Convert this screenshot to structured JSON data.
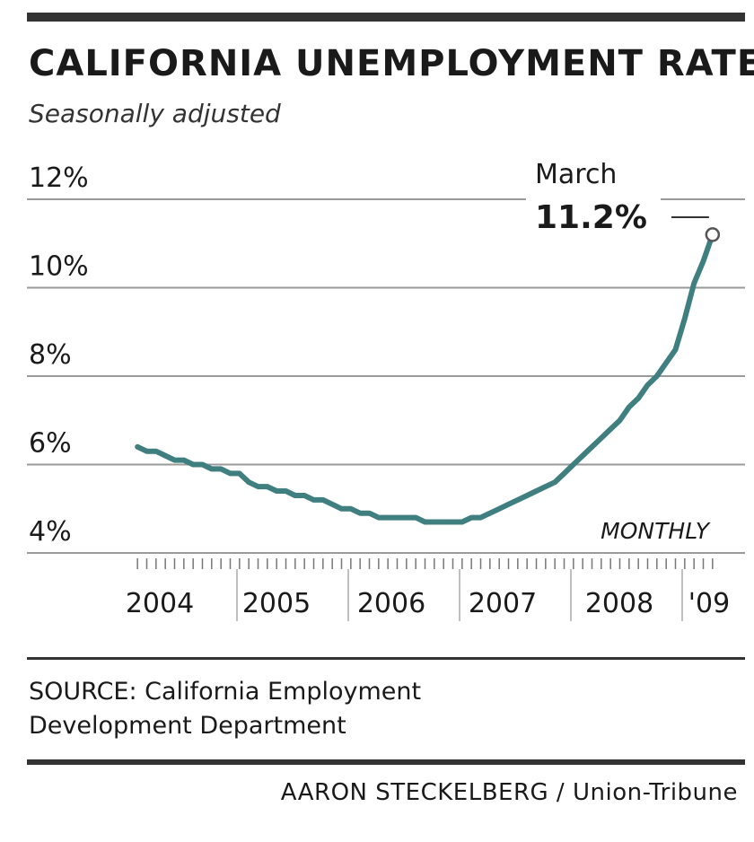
{
  "header": {
    "title": "CALIFORNIA UNEMPLOYMENT RATE",
    "subtitle": "Seasonally adjusted"
  },
  "chart_data": {
    "type": "line",
    "title": "CALIFORNIA UNEMPLOYMENT RATE",
    "subtitle": "Seasonally adjusted",
    "frequency_label": "MONTHLY",
    "ylim": [
      4,
      12
    ],
    "y_ticks": [
      12,
      10,
      8,
      6,
      4
    ],
    "y_tick_labels": [
      "12%",
      "10%",
      "8%",
      "6%",
      "4%"
    ],
    "x_tick_labels": [
      "2004",
      "2005",
      "2006",
      "2007",
      "2008",
      "'09"
    ],
    "grid": true,
    "line_color": "#3f7f80",
    "series": [
      {
        "x": [
          "Jan 2004",
          "Feb 2004",
          "Mar 2004",
          "Apr 2004",
          "May 2004",
          "Jun 2004",
          "Jul 2004",
          "Aug 2004",
          "Sep 2004",
          "Oct 2004",
          "Nov 2004",
          "Dec 2004",
          "Jan 2005",
          "Feb 2005",
          "Mar 2005",
          "Apr 2005",
          "May 2005",
          "Jun 2005",
          "Jul 2005",
          "Aug 2005",
          "Sep 2005",
          "Oct 2005",
          "Nov 2005",
          "Dec 2005",
          "Jan 2006",
          "Feb 2006",
          "Mar 2006",
          "Apr 2006",
          "May 2006",
          "Jun 2006",
          "Jul 2006",
          "Aug 2006",
          "Sep 2006",
          "Oct 2006",
          "Nov 2006",
          "Dec 2006",
          "Jan 2007",
          "Feb 2007",
          "Mar 2007",
          "Apr 2007",
          "May 2007",
          "Jun 2007",
          "Jul 2007",
          "Aug 2007",
          "Sep 2007",
          "Oct 2007",
          "Nov 2007",
          "Dec 2007",
          "Jan 2008",
          "Feb 2008",
          "Mar 2008",
          "Apr 2008",
          "May 2008",
          "Jun 2008",
          "Jul 2008",
          "Aug 2008",
          "Sep 2008",
          "Oct 2008",
          "Nov 2008",
          "Dec 2008",
          "Jan 2009",
          "Feb 2009",
          "Mar 2009"
        ],
        "values": [
          6.4,
          6.3,
          6.3,
          6.2,
          6.1,
          6.1,
          6.0,
          6.0,
          5.9,
          5.9,
          5.8,
          5.8,
          5.6,
          5.5,
          5.5,
          5.4,
          5.4,
          5.3,
          5.3,
          5.2,
          5.2,
          5.1,
          5.0,
          5.0,
          4.9,
          4.9,
          4.8,
          4.8,
          4.8,
          4.8,
          4.8,
          4.7,
          4.7,
          4.7,
          4.7,
          4.7,
          4.8,
          4.8,
          4.9,
          5.0,
          5.1,
          5.2,
          5.3,
          5.4,
          5.5,
          5.6,
          5.8,
          6.0,
          6.2,
          6.4,
          6.6,
          6.8,
          7.0,
          7.3,
          7.5,
          7.8,
          8.0,
          8.3,
          8.6,
          9.3,
          10.1,
          10.6,
          11.2
        ]
      }
    ],
    "annotation": {
      "label": "March",
      "value_label": "11.2%",
      "point": "Mar 2009"
    }
  },
  "footer": {
    "source_line1": "SOURCE: California Employment",
    "source_line2": "Development Department",
    "credit": "AARON STECKELBERG / Union-Tribune"
  }
}
